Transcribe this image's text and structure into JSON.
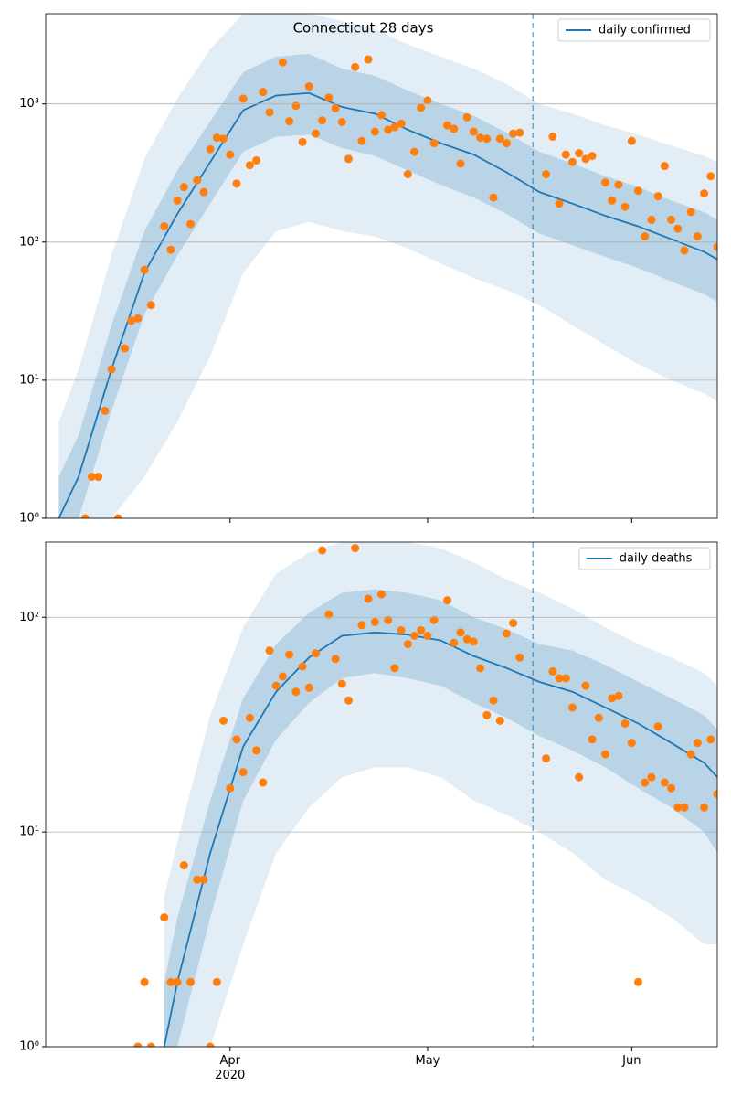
{
  "chart_data": [
    {
      "type": "line",
      "title": "Connecticut 28 days",
      "log_scale": true,
      "grid": true,
      "legend": "upper right",
      "xlim": [
        0,
        102
      ],
      "ylim": [
        1,
        4500
      ],
      "yticks": [
        {
          "value": 1,
          "label": "10⁰"
        },
        {
          "value": 10,
          "label": "10¹"
        },
        {
          "value": 100,
          "label": "10²"
        },
        {
          "value": 1000,
          "label": "10³"
        }
      ],
      "vline": 74,
      "series": [
        {
          "name": "daily confirmed",
          "color": "#1f77b4",
          "x": [
            2,
            5,
            10,
            15,
            20,
            25,
            30,
            35,
            40,
            45,
            50,
            55,
            60,
            65,
            70,
            75,
            80,
            85,
            90,
            95,
            100,
            102
          ],
          "values": [
            1,
            2,
            12,
            60,
            160,
            380,
            900,
            1150,
            1200,
            950,
            850,
            650,
            520,
            430,
            320,
            230,
            190,
            155,
            130,
            105,
            85,
            75
          ]
        }
      ],
      "band_color": "#1f77b4",
      "bands": [
        {
          "lo": [
            1,
            1,
            1,
            2,
            5,
            15,
            60,
            120,
            140,
            120,
            110,
            90,
            70,
            55,
            45,
            35,
            25,
            18,
            13,
            10,
            8,
            7
          ],
          "hi": [
            5,
            12,
            80,
            400,
            1100,
            2500,
            4500,
            4500,
            4500,
            4000,
            3500,
            2700,
            2200,
            1800,
            1400,
            1000,
            850,
            700,
            600,
            500,
            420,
            380
          ]
        },
        {
          "lo": [
            1,
            1,
            6,
            30,
            80,
            190,
            450,
            580,
            600,
            480,
            420,
            330,
            260,
            210,
            160,
            115,
            95,
            78,
            65,
            52,
            42,
            37
          ],
          "hi": [
            2,
            4,
            25,
            120,
            330,
            750,
            1700,
            2200,
            2300,
            1800,
            1600,
            1250,
            1000,
            820,
            620,
            450,
            370,
            300,
            250,
            200,
            165,
            145
          ]
        }
      ],
      "observed": {
        "color": "#ff7f0e",
        "x": [
          6,
          7,
          8,
          9,
          10,
          11,
          12,
          13,
          14,
          15,
          16,
          18,
          19,
          20,
          21,
          22,
          23,
          24,
          25,
          26,
          27,
          28,
          29,
          30,
          31,
          32,
          33,
          34,
          36,
          37,
          38,
          39,
          40,
          41,
          42,
          43,
          44,
          45,
          46,
          47,
          48,
          49,
          50,
          51,
          52,
          53,
          54,
          55,
          56,
          57,
          58,
          59,
          61,
          62,
          63,
          64,
          65,
          66,
          67,
          68,
          69,
          70,
          71,
          72,
          76,
          77,
          78,
          79,
          80,
          81,
          82,
          83,
          85,
          86,
          87,
          88,
          89,
          90,
          91,
          92,
          93,
          94,
          95,
          96,
          97,
          98,
          99,
          100,
          101,
          102
        ],
        "values": [
          1,
          2,
          2,
          6,
          12,
          1,
          17,
          27,
          28,
          63,
          35,
          130,
          88,
          200,
          250,
          135,
          280,
          230,
          470,
          570,
          560,
          430,
          265,
          1090,
          360,
          390,
          1220,
          870,
          2000,
          750,
          970,
          530,
          1340,
          610,
          760,
          1110,
          930,
          740,
          400,
          1850,
          540,
          2100,
          630,
          830,
          650,
          680,
          720,
          310,
          450,
          940,
          1060,
          520,
          700,
          660,
          370,
          800,
          630,
          570,
          560,
          210,
          560,
          520,
          610,
          620,
          310,
          580,
          190,
          430,
          380,
          440,
          400,
          420,
          270,
          200,
          260,
          180,
          540,
          235,
          110,
          145,
          215,
          355,
          145,
          125,
          87,
          165,
          110,
          225,
          300,
          92
        ]
      }
    },
    {
      "type": "line",
      "log_scale": true,
      "grid": true,
      "legend": "upper right",
      "xlim": [
        0,
        102
      ],
      "ylim": [
        1,
        224
      ],
      "xticks": [
        {
          "value": 28,
          "label": "Apr\n2020"
        },
        {
          "value": 58,
          "label": "May"
        },
        {
          "value": 89,
          "label": "Jun"
        }
      ],
      "yticks": [
        {
          "value": 1,
          "label": "10⁰"
        },
        {
          "value": 10,
          "label": "10¹"
        },
        {
          "value": 100,
          "label": "10²"
        }
      ],
      "vline": 74,
      "series": [
        {
          "name": "daily deaths",
          "color": "#1f77b4",
          "x": [
            18,
            20,
            25,
            30,
            35,
            40,
            45,
            50,
            55,
            60,
            65,
            70,
            75,
            80,
            85,
            90,
            95,
            100,
            102
          ],
          "values": [
            1,
            2,
            8,
            25,
            45,
            65,
            82,
            85,
            83,
            78,
            66,
            58,
            50,
            45,
            38,
            32,
            26,
            21,
            18
          ]
        }
      ],
      "band_color": "#1f77b4",
      "bands": [
        {
          "lo": [
            1,
            1,
            1,
            3,
            8,
            13,
            18,
            20,
            20,
            18,
            14,
            12,
            10,
            8,
            6,
            5,
            4,
            3,
            3
          ],
          "hi": [
            5,
            9,
            35,
            90,
            160,
            200,
            224,
            224,
            224,
            210,
            180,
            150,
            130,
            110,
            90,
            75,
            65,
            55,
            48
          ]
        },
        {
          "lo": [
            1,
            1,
            4,
            14,
            27,
            40,
            52,
            55,
            52,
            48,
            40,
            34,
            28,
            24,
            20,
            16,
            13,
            10,
            8
          ],
          "hi": [
            2,
            4,
            14,
            42,
            75,
            105,
            130,
            135,
            130,
            120,
            100,
            88,
            75,
            70,
            60,
            50,
            42,
            35,
            30
          ]
        }
      ],
      "observed": {
        "color": "#ff7f0e",
        "x": [
          14,
          15,
          16,
          18,
          19,
          20,
          21,
          22,
          23,
          24,
          25,
          26,
          27,
          28,
          29,
          30,
          31,
          32,
          33,
          34,
          35,
          36,
          37,
          38,
          39,
          40,
          41,
          42,
          43,
          44,
          45,
          46,
          47,
          48,
          49,
          50,
          51,
          52,
          53,
          54,
          55,
          56,
          57,
          58,
          59,
          61,
          62,
          63,
          64,
          65,
          66,
          67,
          68,
          69,
          70,
          71,
          72,
          76,
          77,
          78,
          79,
          80,
          81,
          82,
          83,
          84,
          85,
          86,
          87,
          88,
          89,
          90,
          91,
          92,
          93,
          94,
          95,
          96,
          97,
          98,
          99,
          100,
          101,
          102
        ],
        "values": [
          1,
          2,
          1,
          4,
          2,
          2,
          7,
          2,
          6,
          6,
          1,
          2,
          33,
          16,
          27,
          19,
          34,
          24,
          17,
          70,
          48,
          53,
          67,
          45,
          59,
          47,
          68,
          205,
          103,
          64,
          49,
          41,
          210,
          92,
          122,
          95,
          128,
          97,
          58,
          87,
          75,
          82,
          87,
          82,
          97,
          120,
          76,
          85,
          79,
          77,
          58,
          35,
          41,
          33,
          84,
          94,
          65,
          22,
          56,
          52,
          52,
          38,
          18,
          48,
          27,
          34,
          23,
          42,
          43,
          32,
          26,
          2,
          17,
          18,
          31,
          17,
          16,
          13,
          13,
          23,
          26,
          13,
          27,
          15
        ]
      }
    }
  ]
}
